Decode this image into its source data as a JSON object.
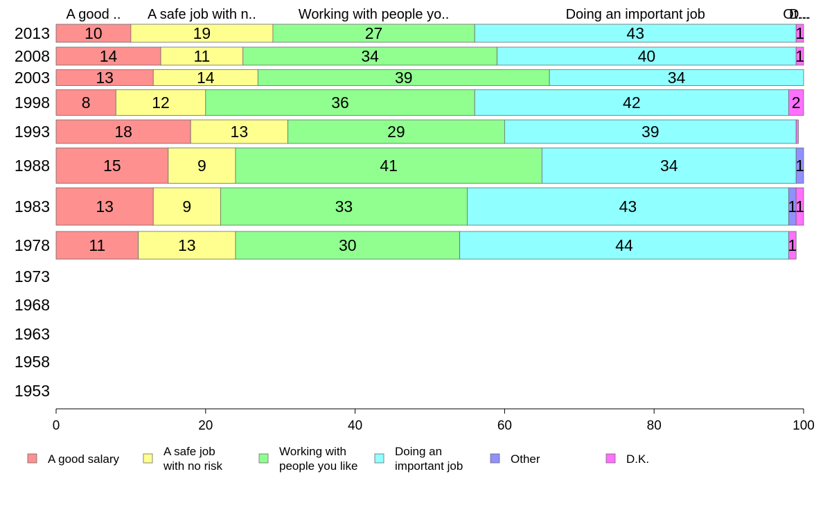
{
  "chart_data": {
    "type": "bar",
    "orientation": "horizontal",
    "stacked": true,
    "categories": [
      "2013",
      "2008",
      "2003",
      "1998",
      "1993",
      "1988",
      "1983",
      "1978",
      "1973",
      "1968",
      "1963",
      "1958",
      "1953"
    ],
    "series": [
      {
        "name": "A good salary",
        "color": "#ff9090",
        "values": [
          10,
          14,
          13,
          8,
          18,
          15,
          13,
          11,
          null,
          null,
          null,
          null,
          null
        ]
      },
      {
        "name": "A safe job with no risk",
        "color": "#ffff90",
        "values": [
          19,
          11,
          14,
          12,
          13,
          9,
          9,
          13,
          null,
          null,
          null,
          null,
          null
        ]
      },
      {
        "name": "Working with people you like",
        "color": "#90ff90",
        "values": [
          27,
          34,
          39,
          36,
          29,
          41,
          33,
          30,
          null,
          null,
          null,
          null,
          null
        ]
      },
      {
        "name": "Doing an important job",
        "color": "#90ffff",
        "values": [
          43,
          40,
          34,
          42,
          39,
          34,
          43,
          44,
          null,
          null,
          null,
          null,
          null
        ]
      },
      {
        "name": "Other",
        "color": "#9090ff",
        "values": [
          0,
          0,
          0,
          0,
          0,
          1,
          1,
          0,
          null,
          null,
          null,
          null,
          null
        ]
      },
      {
        "name": "D.K.",
        "color": "#ff70ff",
        "values": [
          1,
          1,
          0,
          2,
          0.3,
          0,
          1,
          1,
          null,
          null,
          null,
          null,
          null
        ]
      }
    ],
    "top_labels": [
      "A good ..",
      "A safe job with n..",
      "Working with people yo..",
      "Doing an important job",
      "Ot...",
      "D..."
    ],
    "legend_labels": [
      [
        "A good salary"
      ],
      [
        "A safe job",
        "with no risk"
      ],
      [
        "Working with",
        "people you like"
      ],
      [
        "Doing an",
        "important job"
      ],
      [
        "Other"
      ],
      [
        "D.K."
      ]
    ],
    "xlim": [
      0,
      100
    ],
    "x_ticks": [
      0,
      20,
      40,
      60,
      80,
      100
    ],
    "legend_position": "bottom",
    "grid": false,
    "title": "",
    "xlabel": "",
    "ylabel": ""
  }
}
